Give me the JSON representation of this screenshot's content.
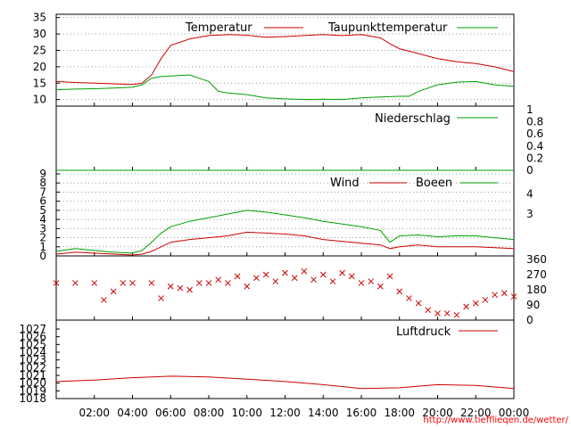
{
  "credit": "http://www.tiefflieqen.de/wetter/",
  "colors": {
    "red": "#cc0000",
    "green": "#00a000"
  },
  "chart_data": [
    {
      "type": "line",
      "id": "temperature",
      "ylim": [
        8,
        36
      ],
      "yticks": [
        10,
        15,
        20,
        25,
        30,
        35
      ],
      "grid": true,
      "legend_placement": "top",
      "series": [
        {
          "name": "Temperatur",
          "color": "#cc0000",
          "x": [
            0,
            1,
            2,
            3,
            4,
            4.5,
            5,
            5.5,
            6,
            7,
            8,
            9,
            10,
            11,
            12,
            13,
            14,
            15,
            16,
            16.5,
            17,
            17.5,
            18,
            19,
            20,
            21,
            22,
            23,
            24
          ],
          "y": [
            15.5,
            15.2,
            15.0,
            14.8,
            14.6,
            15.0,
            17.5,
            22.5,
            26.5,
            28.5,
            29.5,
            29.8,
            29.6,
            29.0,
            29.2,
            29.5,
            29.8,
            29.5,
            29.8,
            29.3,
            28.8,
            27.0,
            25.5,
            24.0,
            22.5,
            21.5,
            21.0,
            20.0,
            18.5
          ]
        },
        {
          "name": "Taupunkttemperatur",
          "color": "#00a000",
          "x": [
            0,
            1,
            2,
            3,
            4,
            4.5,
            5,
            5.5,
            6,
            7,
            7.5,
            8,
            8.5,
            9,
            10,
            11,
            12,
            13,
            14,
            15,
            16,
            17,
            18,
            18.5,
            19,
            20,
            21,
            22,
            23,
            24
          ],
          "y": [
            13.0,
            13.2,
            13.3,
            13.5,
            13.8,
            14.5,
            16.5,
            17.0,
            17.2,
            17.5,
            16.5,
            15.5,
            12.5,
            12.0,
            11.5,
            10.5,
            10.2,
            10.0,
            10.1,
            10.0,
            10.5,
            10.8,
            11.0,
            11.0,
            12.5,
            14.5,
            15.3,
            15.5,
            14.5,
            14.0
          ]
        }
      ]
    },
    {
      "type": "line",
      "id": "precipitation",
      "ylim": [
        0,
        1
      ],
      "yticks": [
        "1",
        "0.8",
        "0.6",
        "0.4",
        "0.2",
        "0"
      ],
      "axis_side": "right",
      "series": [
        {
          "name": "Niederschlag",
          "color": "#00a000",
          "x": [
            0,
            24
          ],
          "y": [
            0,
            0
          ]
        }
      ]
    },
    {
      "type": "line",
      "id": "wind",
      "ylim": [
        0,
        9
      ],
      "yticks": [
        0,
        1,
        2,
        3,
        4,
        5,
        6,
        7,
        8,
        9
      ],
      "right_ticks": [
        "4",
        "3"
      ],
      "grid": true,
      "series": [
        {
          "name": "Wind",
          "color": "#cc0000",
          "x": [
            0,
            1,
            2,
            3,
            4,
            4.5,
            5,
            5.5,
            6,
            7,
            8,
            9,
            10,
            11,
            12,
            13,
            14,
            15,
            16,
            17,
            17.5,
            18,
            19,
            20,
            21,
            22,
            23,
            24
          ],
          "y": [
            0.2,
            0.4,
            0.3,
            0.2,
            0.1,
            0.2,
            0.5,
            1.0,
            1.5,
            1.8,
            2.0,
            2.2,
            2.6,
            2.5,
            2.4,
            2.2,
            1.8,
            1.6,
            1.4,
            1.2,
            0.8,
            1.0,
            1.2,
            1.0,
            1.0,
            1.0,
            0.9,
            0.8
          ]
        },
        {
          "name": "Boeen",
          "color": "#00a000",
          "x": [
            0,
            1,
            2,
            3,
            4,
            4.5,
            5,
            5.5,
            6,
            7,
            8,
            9,
            10,
            11,
            12,
            13,
            14,
            15,
            16,
            17,
            17.5,
            18,
            19,
            20,
            21,
            22,
            23,
            24
          ],
          "y": [
            0.5,
            0.8,
            0.6,
            0.4,
            0.3,
            0.6,
            1.5,
            2.5,
            3.2,
            3.8,
            4.2,
            4.6,
            5.0,
            4.8,
            4.5,
            4.2,
            3.8,
            3.5,
            3.2,
            2.8,
            1.5,
            2.2,
            2.3,
            2.1,
            2.2,
            2.2,
            2.0,
            1.8
          ]
        }
      ]
    },
    {
      "type": "scatter",
      "id": "wind_direction",
      "ylim": [
        0,
        360
      ],
      "right_ticks": [
        "360",
        "270",
        "180",
        "90",
        "0"
      ],
      "series": [
        {
          "name": "",
          "color": "#cc0000",
          "marker": "x",
          "x": [
            0,
            1,
            2,
            2.5,
            3,
            3.5,
            4,
            5,
            5.5,
            6,
            6.5,
            7,
            7.5,
            8,
            8.5,
            9,
            9.5,
            10,
            10.5,
            11,
            11.5,
            12,
            12.5,
            13,
            13.5,
            14,
            14.5,
            15,
            15.5,
            16,
            16.5,
            17,
            17.5,
            18,
            18.5,
            19,
            19.5,
            20,
            20.5,
            21,
            21.5,
            22,
            22.5,
            23,
            23.5,
            24
          ],
          "y": [
            220,
            220,
            220,
            120,
            170,
            220,
            220,
            220,
            130,
            200,
            190,
            180,
            220,
            220,
            240,
            220,
            260,
            200,
            250,
            270,
            230,
            280,
            250,
            290,
            240,
            270,
            230,
            280,
            260,
            220,
            230,
            200,
            260,
            170,
            130,
            100,
            60,
            40,
            40,
            30,
            80,
            100,
            120,
            150,
            160,
            140
          ]
        }
      ]
    },
    {
      "type": "line",
      "id": "pressure",
      "ylim": [
        1018,
        1027
      ],
      "yticks": [
        1018,
        1019,
        1020,
        1021,
        1022,
        1023,
        1024,
        1025,
        1026,
        1027
      ],
      "legend_placement": "top-right",
      "series": [
        {
          "name": "Luftdruck",
          "color": "#cc0000",
          "x": [
            0,
            2,
            4,
            6,
            8,
            10,
            12,
            14,
            16,
            18,
            20,
            22,
            24
          ],
          "y": [
            1020.2,
            1020.4,
            1020.7,
            1020.9,
            1020.8,
            1020.5,
            1020.2,
            1019.8,
            1019.3,
            1019.4,
            1019.8,
            1019.7,
            1019.3
          ]
        }
      ]
    }
  ],
  "x_axis": {
    "range": [
      0,
      24
    ],
    "tick_labels": [
      "02:00",
      "04:00",
      "06:00",
      "08:00",
      "10:00",
      "12:00",
      "14:00",
      "16:00",
      "18:00",
      "20:00",
      "22:00",
      "00:00"
    ]
  }
}
